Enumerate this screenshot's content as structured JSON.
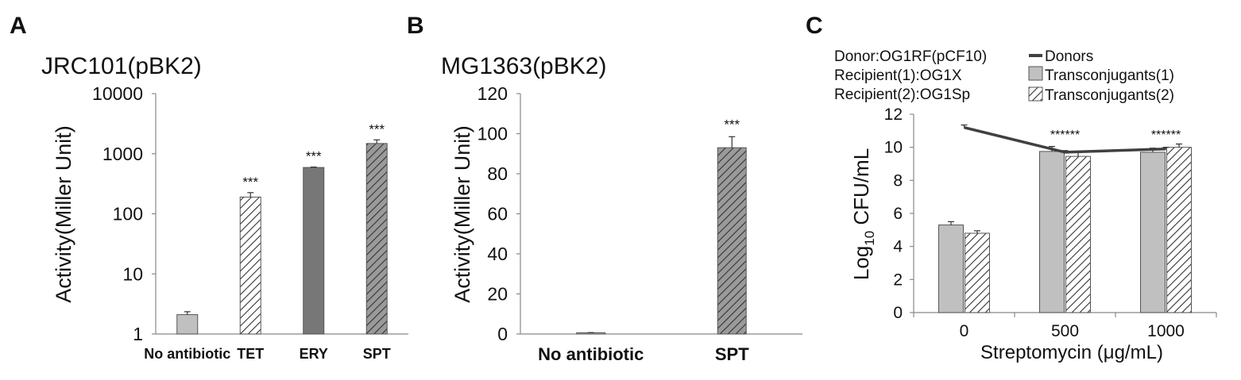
{
  "panel_letters": [
    "A",
    "B",
    "C"
  ],
  "colors": {
    "control_fill": "#c0c0c0",
    "ery_fill": "#777777",
    "spt_base": "#9a9a9a",
    "hatch_line": "#333333",
    "donors_line": "#404040",
    "edge": "#555555"
  },
  "chart_data": [
    {
      "id": "A",
      "type": "bar",
      "title": "JRC101(pBK2)",
      "ylabel": "Activity(Miller Unit)",
      "yscale": "log",
      "ylim": [
        1,
        10000
      ],
      "yticks": [
        "1",
        "10",
        "100",
        "1000",
        "10000"
      ],
      "categories": [
        "No antibiotic",
        "TET",
        "ERY",
        "SPT"
      ],
      "values": [
        2.1,
        190,
        590,
        1480
      ],
      "errors": [
        0.25,
        35,
        10,
        220
      ],
      "fills": [
        "solid-light",
        "hatch-white",
        "solid-dark",
        "hatch-gray"
      ],
      "annotations": [
        "",
        "***",
        "***",
        "***"
      ]
    },
    {
      "id": "B",
      "type": "bar",
      "title": "MG1363(pBK2)",
      "ylabel": "Activity(Miller Unit)",
      "yscale": "linear",
      "ylim": [
        0,
        120
      ],
      "yticks": [
        "0",
        "20",
        "40",
        "60",
        "80",
        "100",
        "120"
      ],
      "categories": [
        "No antibiotic",
        "SPT"
      ],
      "values": [
        0.6,
        93
      ],
      "errors": [
        0.1,
        5.5
      ],
      "fills": [
        "solid-light",
        "hatch-gray"
      ],
      "annotations": [
        "",
        "***"
      ]
    },
    {
      "id": "C",
      "type": "bar",
      "info_lines": [
        "Donor:OG1RF(pCF10)",
        "Recipient(1):OG1X",
        "Recipient(2):OG1Sp"
      ],
      "xlabel": "Streptomycin (μg/mL)",
      "ylabel_main": "Log",
      "ylabel_sub": "10",
      "ylabel_rest": " CFU/mL",
      "yscale": "linear",
      "ylim": [
        0,
        12
      ],
      "yticks": [
        "0",
        "2",
        "4",
        "6",
        "8",
        "10",
        "12"
      ],
      "categories": [
        "0",
        "500",
        "1000"
      ],
      "series": [
        {
          "name": "Transconjugants(1)",
          "values": [
            5.3,
            9.75,
            9.7
          ],
          "errors": [
            0.2,
            0.3,
            0.25
          ],
          "fill": "solid-light"
        },
        {
          "name": "Transconjugants(2)",
          "values": [
            4.8,
            9.45,
            10.0
          ],
          "errors": [
            0.15,
            0.3,
            0.2
          ],
          "fill": "hatch-white"
        }
      ],
      "line_series": {
        "name": "Donors",
        "values": [
          11.2,
          9.7,
          9.9
        ],
        "errors": [
          0.15,
          0.1,
          0.1
        ]
      },
      "annotations": [
        "",
        "******",
        "******"
      ]
    }
  ]
}
